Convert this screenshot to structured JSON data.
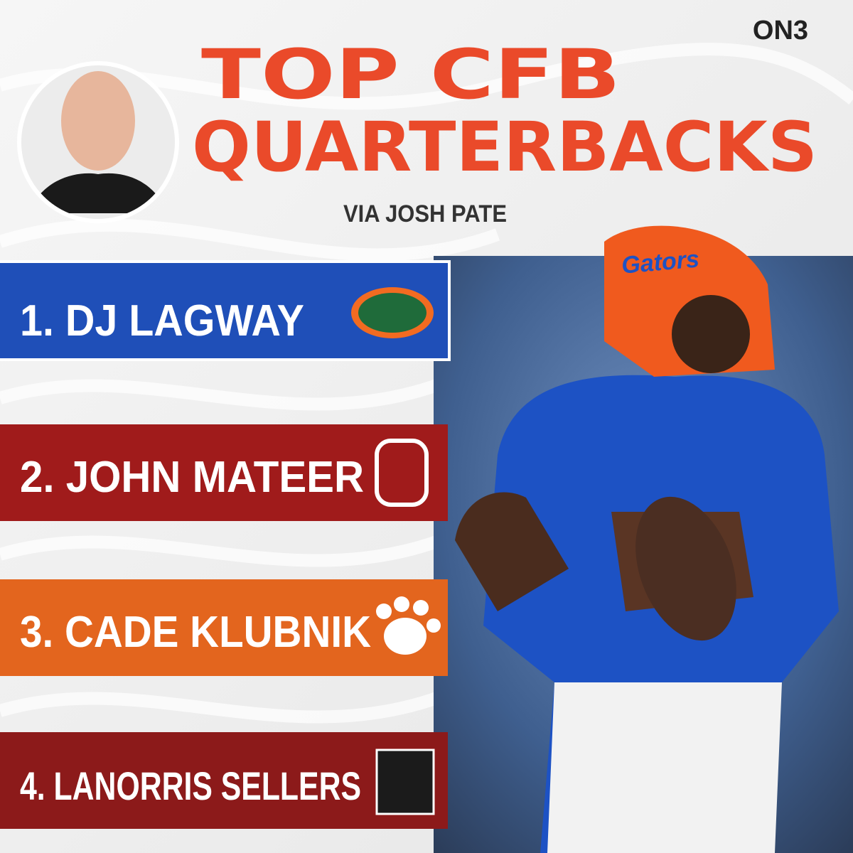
{
  "header": {
    "logo": "ON3",
    "title_line1": "TOP CFB",
    "title_line2": "QUARTERBACKS",
    "subtitle": "VIA JOSH PATE"
  },
  "rankings": [
    {
      "label": "1. DJ LAGWAY"
    },
    {
      "label": "2. JOHN MATEER"
    },
    {
      "label": "3. CADE KLUBNIK"
    },
    {
      "label": "4. LANORRIS SELLERS"
    }
  ],
  "photo": {
    "helmet_text": "Gators"
  }
}
